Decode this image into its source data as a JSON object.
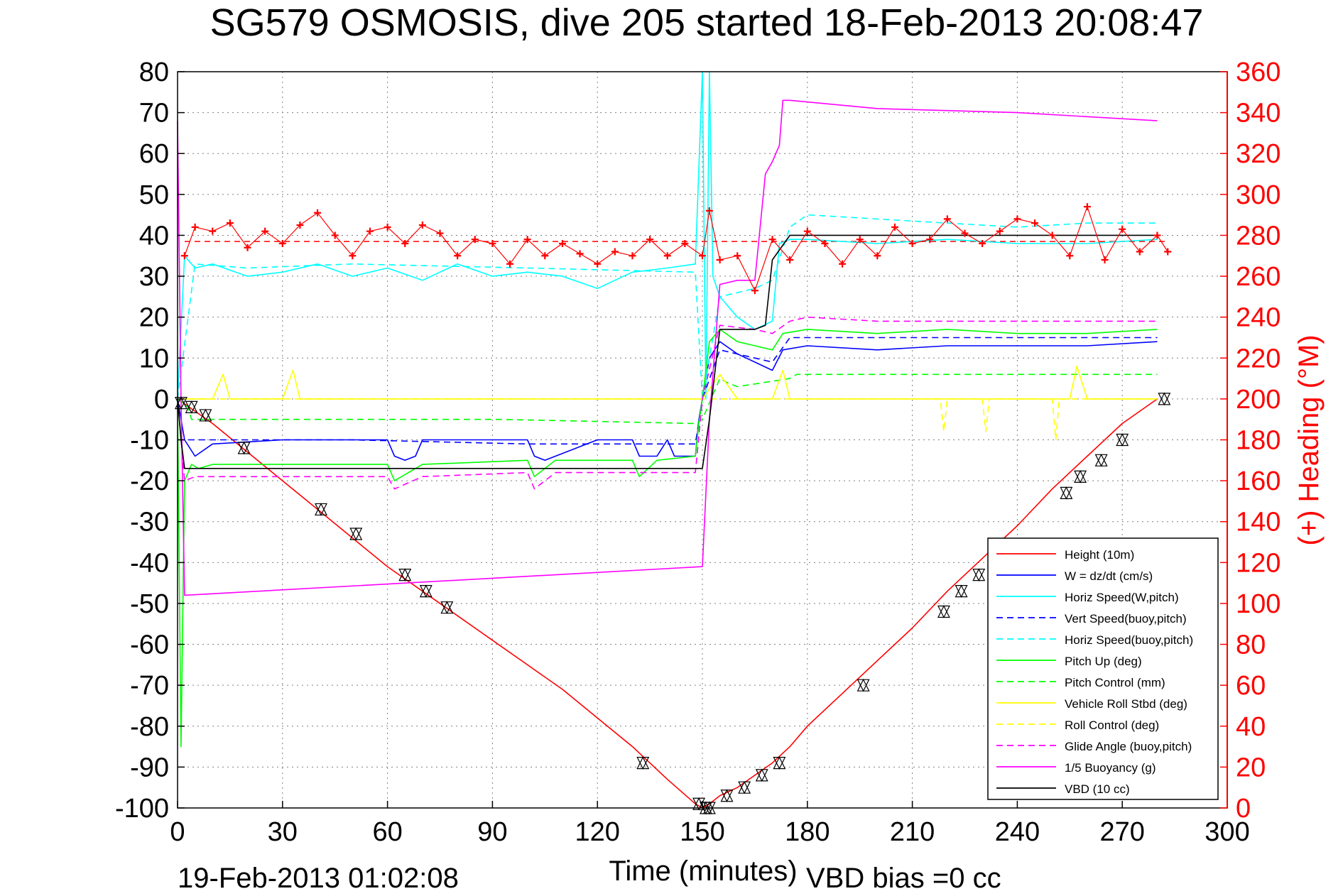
{
  "chart_data": {
    "type": "line",
    "title": "SG579 OSMOSIS, dive 205 started 18-Feb-2013 20:08:47",
    "xlabel": "Time (minutes)",
    "ylabel_left": "",
    "ylabel_right": "(+) Heading (°M)",
    "footer_left": "19-Feb-2013 01:02:08",
    "footer_right": "VBD bias =0 cc",
    "xlim": [
      0,
      300
    ],
    "ylim": [
      -100,
      80
    ],
    "y2lim": [
      0,
      360
    ],
    "xticks": [
      "0",
      "30",
      "60",
      "90",
      "120",
      "150",
      "180",
      "210",
      "240",
      "270",
      "300"
    ],
    "yticks": [
      "80",
      "70",
      "60",
      "50",
      "40",
      "30",
      "20",
      "10",
      "0",
      "-10",
      "-20",
      "-30",
      "-40",
      "-50",
      "-60",
      "-70",
      "-80",
      "-90",
      "-100"
    ],
    "y2ticks": [
      "360",
      "340",
      "320",
      "300",
      "280",
      "260",
      "240",
      "220",
      "200",
      "180",
      "160",
      "140",
      "120",
      "100",
      "80",
      "60",
      "40",
      "20",
      "0"
    ],
    "grid": true,
    "legend_position": "bottom-right",
    "right_axis_color": "#ff0000",
    "series": [
      {
        "name": "Height (10m)",
        "color": "#ff0000",
        "style": "solid",
        "x": [
          0,
          10,
          20,
          30,
          40,
          50,
          60,
          70,
          80,
          90,
          100,
          110,
          120,
          130,
          140,
          148,
          150,
          152,
          155,
          160,
          165,
          170,
          175,
          180,
          190,
          200,
          210,
          220,
          230,
          240,
          250,
          260,
          270,
          280
        ],
        "y": [
          0,
          -6,
          -13,
          -20,
          -27,
          -34,
          -41,
          -47,
          -53,
          -59,
          -65,
          -71,
          -78,
          -85,
          -93,
          -99,
          -100,
          -99,
          -97,
          -95,
          -92,
          -89,
          -85,
          -80,
          -72,
          -64,
          -56,
          -47,
          -39,
          -31,
          -22,
          -14,
          -6,
          0
        ]
      },
      {
        "name": "W = dz/dt (cm/s)",
        "color": "#0000ff",
        "style": "solid",
        "x": [
          0,
          2,
          5,
          10,
          30,
          60,
          62,
          65,
          68,
          70,
          90,
          100,
          102,
          105,
          108,
          120,
          130,
          132,
          137,
          140,
          142,
          148,
          149,
          150,
          152,
          155,
          160,
          165,
          170,
          173,
          180,
          200,
          220,
          240,
          260,
          280
        ],
        "y": [
          0,
          -10,
          -14,
          -11,
          -10,
          -10,
          -14,
          -15,
          -14,
          -10,
          -10,
          -10,
          -14,
          -15,
          -14,
          -10,
          -10,
          -14,
          -14,
          -10,
          -14,
          -14,
          -5,
          0,
          10,
          14,
          11,
          9,
          7,
          12,
          13,
          12,
          13,
          13,
          13,
          14
        ]
      },
      {
        "name": "Horiz Speed(W,pitch)",
        "color": "#00ffff",
        "style": "solid",
        "x": [
          0,
          2,
          5,
          10,
          20,
          30,
          40,
          50,
          60,
          70,
          80,
          90,
          100,
          110,
          120,
          130,
          140,
          148,
          150,
          151,
          152,
          153,
          155,
          160,
          165,
          170,
          172,
          175,
          180,
          200,
          220,
          240,
          260,
          280
        ],
        "y": [
          0,
          35,
          32,
          33,
          30,
          31,
          33,
          30,
          32,
          29,
          33,
          30,
          31,
          30,
          27,
          31,
          32,
          33,
          80,
          0,
          80,
          30,
          25,
          20,
          17,
          19,
          38,
          39,
          39,
          38,
          39,
          38,
          38,
          39
        ]
      },
      {
        "name": "Vert Speed(buoy,pitch)",
        "color": "#0000ff",
        "style": "dashed",
        "x": [
          0,
          5,
          50,
          100,
          148,
          150,
          155,
          165,
          170,
          175,
          180,
          200,
          220,
          240,
          260,
          280
        ],
        "y": [
          -10,
          -10,
          -10,
          -11,
          -11,
          0,
          12,
          10,
          9,
          15,
          15,
          15,
          15,
          15,
          15,
          15
        ]
      },
      {
        "name": "Horiz Speed(buoy,pitch)",
        "color": "#00ffff",
        "style": "dashed",
        "x": [
          0,
          5,
          20,
          50,
          100,
          148,
          150,
          155,
          165,
          170,
          175,
          180,
          200,
          220,
          240,
          260,
          280
        ],
        "y": [
          0,
          33,
          32,
          33,
          32,
          31,
          0,
          25,
          27,
          29,
          42,
          45,
          44,
          43,
          42,
          43,
          43
        ]
      },
      {
        "name": "Pitch Up (deg)",
        "color": "#00ff00",
        "style": "solid",
        "x": [
          0,
          1,
          2,
          4,
          6,
          10,
          60,
          62,
          70,
          100,
          102,
          108,
          130,
          132,
          137,
          148,
          149,
          150,
          152,
          155,
          160,
          165,
          170,
          173,
          180,
          200,
          220,
          240,
          260,
          280
        ],
        "y": [
          0,
          -85,
          -20,
          -16,
          -17,
          -16,
          -16,
          -20,
          -16,
          -15,
          -19,
          -15,
          -15,
          -19,
          -15,
          -14,
          -6,
          0,
          14,
          17,
          14,
          13,
          12,
          16,
          17,
          16,
          17,
          16,
          16,
          17
        ]
      },
      {
        "name": "Pitch Control (mm)",
        "color": "#00ff00",
        "style": "dashed",
        "x": [
          0,
          3,
          4,
          10,
          90,
          92,
          148,
          150,
          155,
          157,
          160,
          175,
          177,
          280
        ],
        "y": [
          0,
          -2,
          -5,
          -5,
          -5,
          -5,
          -6,
          -5,
          5,
          4,
          3,
          5,
          6,
          6
        ]
      },
      {
        "name": "Vehicle Roll Stbd (deg)",
        "color": "#ffff00",
        "style": "solid",
        "x": [
          0,
          5,
          10,
          13,
          15,
          20,
          30,
          33,
          35,
          40,
          50,
          60,
          80,
          100,
          120,
          140,
          148,
          150,
          155,
          160,
          170,
          173,
          175,
          180,
          200,
          220,
          230,
          240,
          255,
          257,
          260,
          280
        ],
        "y": [
          0,
          0,
          0,
          6,
          0,
          0,
          0,
          7,
          0,
          0,
          0,
          0,
          0,
          0,
          0,
          0,
          0,
          0,
          6,
          0,
          0,
          7,
          0,
          0,
          0,
          0,
          0,
          0,
          0,
          8,
          0,
          0
        ]
      },
      {
        "name": "Roll Control (deg)",
        "color": "#ffff00",
        "style": "dashed",
        "x": [
          0,
          50,
          100,
          148,
          150,
          160,
          200,
          218,
          219,
          220,
          230,
          231,
          232,
          240,
          250,
          251,
          252,
          280
        ],
        "y": [
          0,
          0,
          0,
          0,
          0,
          0,
          0,
          0,
          -8,
          0,
          0,
          -8,
          0,
          0,
          0,
          -10,
          0,
          0
        ]
      },
      {
        "name": "Glide Angle (buoy,pitch)",
        "color": "#ff00ff",
        "style": "dashed",
        "x": [
          0,
          2,
          5,
          10,
          60,
          62,
          70,
          100,
          102,
          108,
          148,
          150,
          155,
          165,
          170,
          175,
          180,
          200,
          220,
          240,
          260,
          280
        ],
        "y": [
          0,
          -20,
          -19,
          -19,
          -19,
          -22,
          -19,
          -18,
          -22,
          -18,
          -18,
          0,
          18,
          17,
          16,
          19,
          20,
          19,
          19,
          19,
          19,
          19
        ]
      },
      {
        "name": "1/5 Buoyancy (g)",
        "color": "#ff00ff",
        "style": "solid",
        "x": [
          0,
          1,
          2,
          150,
          152,
          155,
          160,
          165,
          168,
          170,
          172,
          173,
          175,
          200,
          240,
          280
        ],
        "y": [
          68,
          0,
          -48,
          -41,
          -5,
          28,
          29,
          29,
          55,
          58,
          62,
          73,
          73,
          71,
          70,
          68
        ]
      },
      {
        "name": "VBD (10 cc)",
        "color": "#000000",
        "style": "solid",
        "x": [
          0,
          1,
          2,
          150,
          152,
          155,
          160,
          165,
          168,
          170,
          175,
          180,
          200,
          240,
          280
        ],
        "y": [
          0,
          -10,
          -17,
          -17,
          -5,
          17,
          17,
          17,
          18,
          34,
          40,
          40,
          40,
          40,
          40
        ]
      }
    ],
    "heading_series": {
      "name": "(+) Heading (°M)",
      "color": "#ff0000",
      "marker": "+",
      "axis": "right",
      "x": [
        2,
        5,
        10,
        15,
        20,
        25,
        30,
        35,
        40,
        45,
        50,
        55,
        60,
        65,
        70,
        75,
        80,
        85,
        90,
        95,
        100,
        105,
        110,
        115,
        120,
        125,
        130,
        135,
        140,
        145,
        150,
        152,
        155,
        160,
        165,
        170,
        175,
        180,
        185,
        190,
        195,
        200,
        205,
        210,
        215,
        220,
        225,
        230,
        235,
        240,
        245,
        250,
        255,
        260,
        265,
        270,
        275,
        280,
        283
      ],
      "y": [
        270,
        284,
        282,
        286,
        274,
        282,
        276,
        285,
        291,
        280,
        270,
        282,
        284,
        276,
        285,
        281,
        270,
        278,
        276,
        266,
        278,
        270,
        276,
        271,
        266,
        272,
        270,
        278,
        270,
        276,
        270,
        292,
        268,
        270,
        253,
        278,
        268,
        282,
        276,
        266,
        278,
        270,
        284,
        276,
        278,
        288,
        281,
        276,
        282,
        288,
        286,
        280,
        270,
        294,
        268,
        283,
        272,
        280,
        272
      ],
      "reference_line": 277
    },
    "markers": {
      "symbol": "triangle",
      "color": "#000000",
      "points": [
        {
          "x": 1,
          "y": -1
        },
        {
          "x": 4,
          "y": -2
        },
        {
          "x": 8,
          "y": -4
        },
        {
          "x": 19,
          "y": -12
        },
        {
          "x": 41,
          "y": -27
        },
        {
          "x": 51,
          "y": -33
        },
        {
          "x": 65,
          "y": -43
        },
        {
          "x": 71,
          "y": -47
        },
        {
          "x": 77,
          "y": -51
        },
        {
          "x": 133,
          "y": -89
        },
        {
          "x": 149,
          "y": -99
        },
        {
          "x": 151,
          "y": -100
        },
        {
          "x": 152,
          "y": -100
        },
        {
          "x": 157,
          "y": -97
        },
        {
          "x": 162,
          "y": -95
        },
        {
          "x": 167,
          "y": -92
        },
        {
          "x": 172,
          "y": -89
        },
        {
          "x": 196,
          "y": -70
        },
        {
          "x": 219,
          "y": -52
        },
        {
          "x": 224,
          "y": -47
        },
        {
          "x": 229,
          "y": -43
        },
        {
          "x": 254,
          "y": -23
        },
        {
          "x": 258,
          "y": -19
        },
        {
          "x": 264,
          "y": -15
        },
        {
          "x": 270,
          "y": -10
        },
        {
          "x": 282,
          "y": 0
        }
      ]
    }
  }
}
